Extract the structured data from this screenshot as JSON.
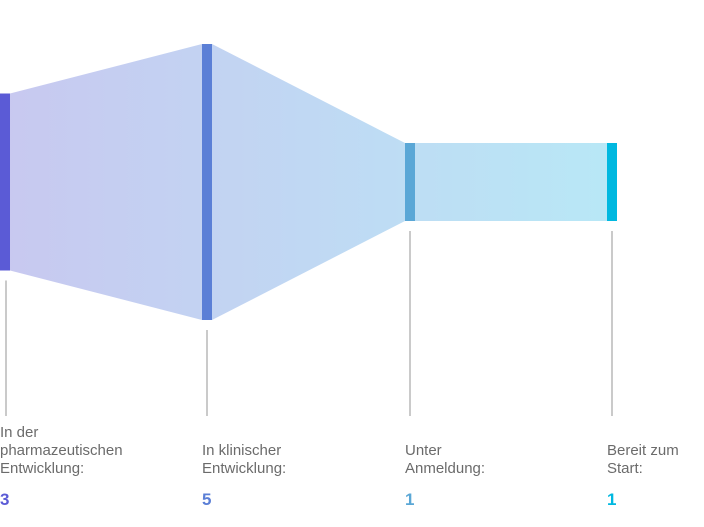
{
  "chart_data": {
    "type": "funnel",
    "title": "",
    "stages": [
      {
        "label": "In der\npharmazeutischen\nEntwicklung:",
        "value": 3,
        "color": "#5b5bd6"
      },
      {
        "label": "In klinischer\nEntwicklung:",
        "value": 5,
        "color": "#5b7fd6"
      },
      {
        "label": "Unter\nAnmeldung:",
        "value": 1,
        "color": "#5aa7d6"
      },
      {
        "label": "Bereit zum\nStart:",
        "value": 1,
        "color": "#00b8e0"
      }
    ],
    "gradient": {
      "start": "#c8c8f0",
      "end": "#b8e8f6"
    },
    "leader_line_color": "#b8b8b8"
  }
}
